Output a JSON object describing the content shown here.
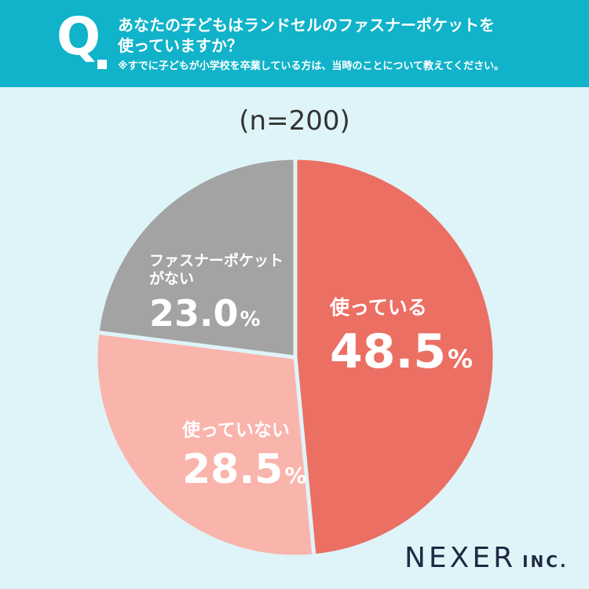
{
  "header": {
    "q_letter": "Q",
    "question_line1": "あなたの子どもはランドセルのファスナーポケットを",
    "question_line2": "使っていますか？",
    "note": "※すでに子どもが小学校を卒業している方は、当時のことについて教えてください。"
  },
  "sample_label": "(n=200)",
  "colors": {
    "header_bg": "#10b3c9",
    "page_bg": "#dff4f8",
    "slice_using": "#ec6f64",
    "slice_not_using": "#f9b4ac",
    "slice_no_pocket": "#a3a3a3"
  },
  "chart_data": {
    "type": "pie",
    "title": "",
    "slices": [
      {
        "label": "使っている",
        "value": 48.5,
        "display": "48.5",
        "color": "#ec6f64"
      },
      {
        "label": "使っていない",
        "value": 28.5,
        "display": "28.5",
        "color": "#f9b4ac"
      },
      {
        "label": "ファスナーポケットがない",
        "label_lines": [
          "ファスナーポケット",
          "がない"
        ],
        "value": 23.0,
        "display": "23.0",
        "color": "#a3a3a3"
      }
    ],
    "unit": "%"
  },
  "logo": {
    "main": "NEXER",
    "sub": "INC."
  }
}
